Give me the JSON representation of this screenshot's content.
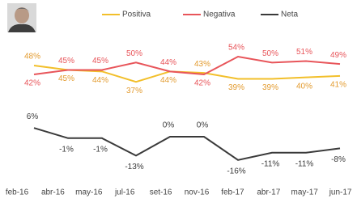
{
  "chart_data": {
    "type": "line",
    "categories": [
      "feb-16",
      "abr-16",
      "may-16",
      "jul-16",
      "set-16",
      "nov-16",
      "feb-17",
      "abr-17",
      "may-17",
      "jun-17"
    ],
    "series": [
      {
        "name": "Positiva",
        "color": "#f2bf2a",
        "values": [
          48,
          45,
          44,
          37,
          44,
          43,
          39,
          39,
          40,
          41
        ],
        "value_labels": [
          "48%",
          "45%",
          "44%",
          "37%",
          "44%",
          "43%",
          "39%",
          "39%",
          "40%",
          "41%"
        ]
      },
      {
        "name": "Negativa",
        "color": "#e8555a",
        "values": [
          42,
          45,
          45,
          50,
          44,
          42,
          54,
          50,
          51,
          49
        ],
        "value_labels": [
          "42%",
          "45%",
          "45%",
          "50%",
          "44%",
          "42%",
          "54%",
          "50%",
          "51%",
          "49%"
        ]
      },
      {
        "name": "Neta",
        "color": "#3a3a3a",
        "axis": "y2",
        "values": [
          6,
          -1,
          -1,
          -13,
          0,
          0,
          -16,
          -11,
          -11,
          -8
        ],
        "value_labels": [
          "6%",
          "-1%",
          "-1%",
          "-13%",
          "0%",
          "0%",
          "-16%",
          "-11%",
          "-11%",
          "-8%"
        ]
      }
    ],
    "ylim": [
      30,
      60
    ],
    "y2lim": [
      -20,
      10
    ],
    "grid": false
  }
}
